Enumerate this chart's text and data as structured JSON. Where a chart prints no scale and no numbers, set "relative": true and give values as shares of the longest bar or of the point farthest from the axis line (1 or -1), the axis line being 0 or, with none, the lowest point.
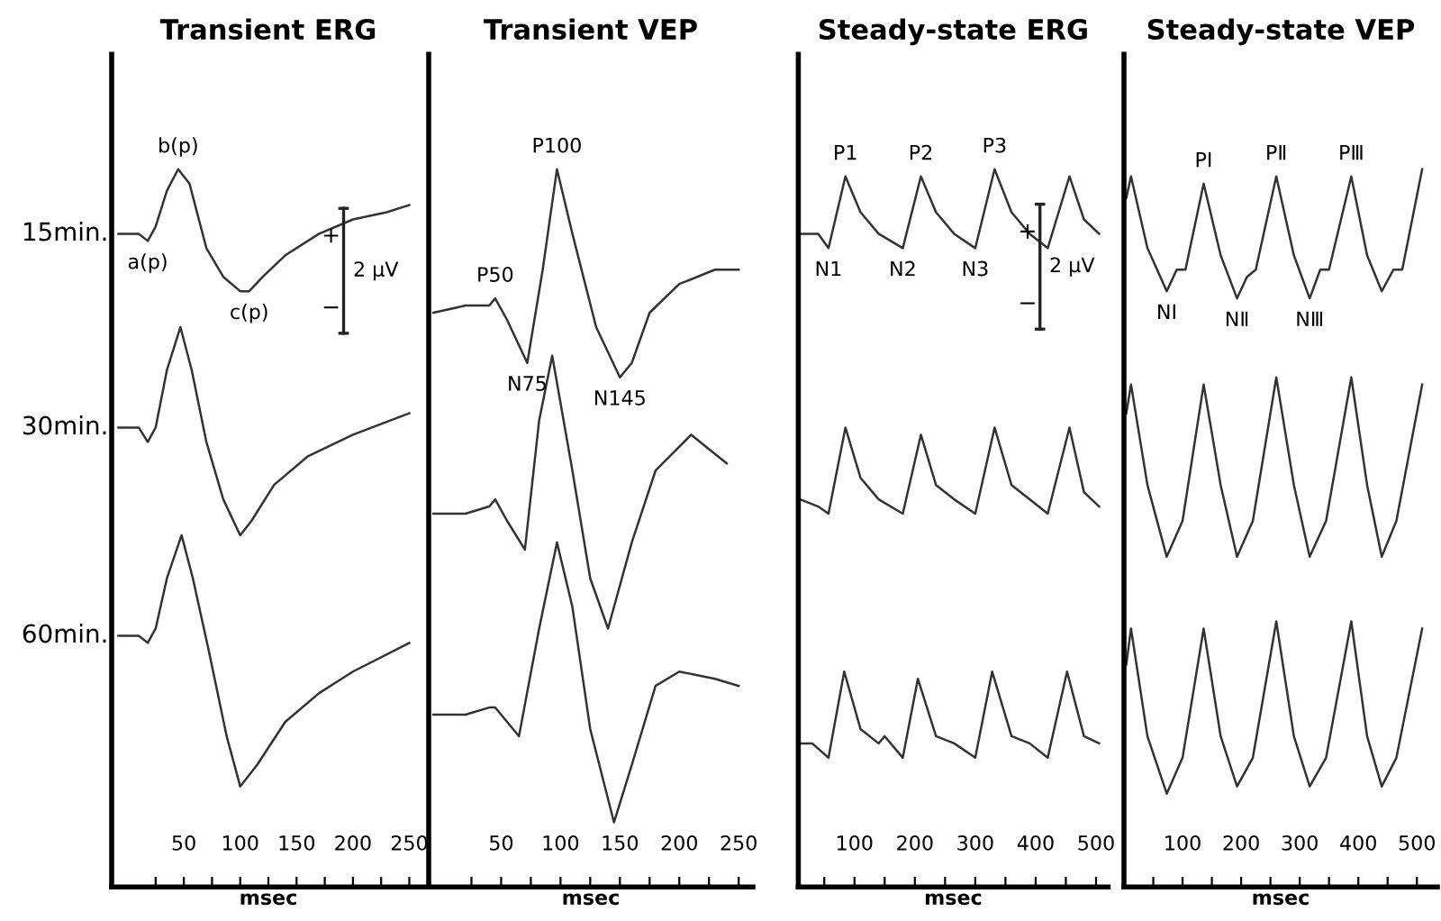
{
  "chart_data": [
    {
      "type": "line",
      "title": "Transient ERG",
      "xlabel": "msec",
      "relative": true,
      "legend": false,
      "grid": false,
      "color": "#333333",
      "xlim": [
        -14,
        264
      ],
      "xticks": [
        {
          "value": 25,
          "label": null
        },
        50,
        {
          "value": 75,
          "label": null
        },
        100,
        {
          "value": 125,
          "label": null
        },
        150,
        {
          "value": 175,
          "label": null
        },
        200,
        {
          "value": 225,
          "label": null
        },
        250
      ],
      "series": [
        {
          "x": [
            -8,
            10,
            18,
            25,
            35,
            45,
            55,
            70,
            85,
            100,
            108,
            120,
            140,
            170,
            200,
            230,
            250
          ],
          "values": [
            0.91,
            0.91,
            0.9,
            0.92,
            0.97,
            1.0,
            0.98,
            0.89,
            0.85,
            0.83,
            0.83,
            0.85,
            0.88,
            0.91,
            0.93,
            0.94,
            0.95
          ]
        },
        {
          "x": [
            -8,
            10,
            18,
            25,
            35,
            47,
            57,
            70,
            85,
            100,
            110,
            130,
            160,
            200,
            250
          ],
          "values": [
            0.64,
            0.64,
            0.62,
            0.64,
            0.72,
            0.78,
            0.72,
            0.62,
            0.54,
            0.49,
            0.51,
            0.56,
            0.6,
            0.63,
            0.66
          ]
        },
        {
          "x": [
            -8,
            10,
            18,
            25,
            35,
            48,
            58,
            72,
            88,
            100,
            115,
            140,
            170,
            200,
            250
          ],
          "values": [
            0.35,
            0.35,
            0.34,
            0.36,
            0.43,
            0.49,
            0.43,
            0.33,
            0.21,
            0.14,
            0.17,
            0.23,
            0.27,
            0.3,
            0.34
          ]
        }
      ],
      "annotations": [
        "15min.",
        "30min.",
        "60min.",
        "+",
        "−",
        "2 μV",
        {
          "text": "a(p)",
          "x": 18,
          "y": 0.9
        },
        {
          "text": "b(p)",
          "x": 45,
          "y": 1.0
        },
        {
          "text": "c(p)",
          "x": 108,
          "y": 0.83
        }
      ]
    },
    {
      "type": "line",
      "title": "Transient VEP",
      "xlabel": "msec",
      "relative": true,
      "legend": false,
      "grid": false,
      "color": "#333333",
      "xlim": [
        -11,
        262
      ],
      "xticks": [
        {
          "value": 25,
          "label": null
        },
        50,
        {
          "value": 75,
          "label": null
        },
        100,
        {
          "value": 125,
          "label": null
        },
        150,
        {
          "value": 175,
          "label": null
        },
        200,
        {
          "value": 225,
          "label": null
        },
        250
      ],
      "series": [
        {
          "x": [
            -7,
            20,
            40,
            45,
            55,
            72,
            85,
            97,
            110,
            130,
            150,
            160,
            175,
            200,
            230,
            250
          ],
          "values": [
            0.8,
            0.81,
            0.81,
            0.82,
            0.79,
            0.73,
            0.86,
            1.0,
            0.91,
            0.78,
            0.71,
            0.73,
            0.8,
            0.84,
            0.86,
            0.86
          ]
        },
        {
          "x": [
            -7,
            20,
            40,
            45,
            55,
            70,
            82,
            93,
            110,
            125,
            140,
            160,
            180,
            210,
            240
          ],
          "values": [
            0.52,
            0.52,
            0.53,
            0.54,
            0.51,
            0.47,
            0.65,
            0.74,
            0.58,
            0.43,
            0.36,
            0.48,
            0.58,
            0.63,
            0.59
          ]
        },
        {
          "x": [
            -7,
            20,
            40,
            45,
            55,
            65,
            82,
            97,
            110,
            125,
            145,
            160,
            180,
            200,
            230,
            250
          ],
          "values": [
            0.24,
            0.24,
            0.25,
            0.25,
            0.23,
            0.21,
            0.36,
            0.48,
            0.39,
            0.22,
            0.09,
            0.17,
            0.28,
            0.3,
            0.29,
            0.28
          ]
        }
      ],
      "annotations": [
        {
          "text": "P50",
          "x": 45,
          "y": 0.82
        },
        {
          "text": "N75",
          "x": 72,
          "y": 0.73
        },
        {
          "text": "P100",
          "x": 97,
          "y": 1.0
        },
        {
          "text": "N145",
          "x": 150,
          "y": 0.71
        }
      ]
    },
    {
      "type": "line",
      "title": "Steady-state ERG",
      "xlabel": "msec",
      "relative": true,
      "legend": false,
      "grid": false,
      "color": "#333333",
      "xlim": [
        7,
        520
      ],
      "xticks": [
        {
          "value": 50,
          "label": null
        },
        100,
        {
          "value": 150,
          "label": null
        },
        200,
        {
          "value": 250,
          "label": null
        },
        300,
        {
          "value": 350,
          "label": null
        },
        400,
        {
          "value": 450,
          "label": null
        },
        500
      ],
      "series": [
        {
          "x": [
            10,
            40,
            57,
            85,
            110,
            140,
            180,
            210,
            235,
            265,
            300,
            332,
            360,
            390,
            420,
            456,
            480,
            505
          ],
          "values": [
            0.91,
            0.91,
            0.89,
            0.99,
            0.94,
            0.91,
            0.89,
            0.99,
            0.94,
            0.91,
            0.89,
            1.0,
            0.94,
            0.91,
            0.89,
            0.99,
            0.93,
            0.91
          ]
        },
        {
          "x": [
            10,
            40,
            57,
            85,
            110,
            140,
            180,
            210,
            235,
            265,
            300,
            332,
            360,
            390,
            420,
            456,
            480,
            505
          ],
          "values": [
            0.54,
            0.53,
            0.52,
            0.64,
            0.57,
            0.54,
            0.52,
            0.63,
            0.56,
            0.54,
            0.52,
            0.64,
            0.56,
            0.54,
            0.52,
            0.64,
            0.55,
            0.53
          ]
        },
        {
          "x": [
            10,
            30,
            57,
            83,
            110,
            140,
            150,
            180,
            205,
            235,
            265,
            300,
            328,
            360,
            390,
            420,
            452,
            480,
            505
          ],
          "values": [
            0.2,
            0.2,
            0.18,
            0.3,
            0.22,
            0.2,
            0.21,
            0.18,
            0.29,
            0.21,
            0.2,
            0.18,
            0.3,
            0.21,
            0.2,
            0.18,
            0.3,
            0.21,
            0.2
          ]
        }
      ],
      "annotations": [
        "+",
        "−",
        "2 μV",
        {
          "text": "P1",
          "x": 85,
          "y": 0.99
        },
        {
          "text": "P2",
          "x": 210,
          "y": 0.99
        },
        {
          "text": "P3",
          "x": 332,
          "y": 1.0
        },
        {
          "text": "N1",
          "x": 57,
          "y": 0.89
        },
        {
          "text": "N2",
          "x": 180,
          "y": 0.89
        },
        {
          "text": "N3",
          "x": 300,
          "y": 0.89
        }
      ]
    },
    {
      "type": "line",
      "title": "Steady-state VEP",
      "xlabel": "msec",
      "relative": true,
      "legend": false,
      "grid": false,
      "color": "#333333",
      "xlim": [
        0,
        535
      ],
      "xticks": [
        {
          "value": 50,
          "label": null
        },
        100,
        {
          "value": 150,
          "label": null
        },
        200,
        {
          "value": 250,
          "label": null
        },
        300,
        {
          "value": 350,
          "label": null
        },
        400,
        {
          "value": 450,
          "label": null
        },
        500
      ],
      "series": [
        {
          "x": [
            4,
            12,
            40,
            73,
            90,
            105,
            136,
            165,
            193,
            210,
            225,
            260,
            290,
            317,
            335,
            350,
            388,
            415,
            440,
            460,
            475,
            509
          ],
          "values": [
            0.96,
            0.99,
            0.89,
            0.83,
            0.86,
            0.86,
            0.98,
            0.88,
            0.82,
            0.85,
            0.86,
            0.99,
            0.88,
            0.82,
            0.86,
            0.86,
            0.99,
            0.88,
            0.83,
            0.86,
            0.86,
            1.0
          ]
        },
        {
          "x": [
            4,
            12,
            40,
            73,
            100,
            136,
            165,
            193,
            220,
            260,
            290,
            317,
            345,
            388,
            415,
            440,
            465,
            509
          ],
          "values": [
            0.66,
            0.7,
            0.56,
            0.46,
            0.51,
            0.7,
            0.56,
            0.46,
            0.51,
            0.71,
            0.56,
            0.46,
            0.51,
            0.71,
            0.56,
            0.46,
            0.51,
            0.7
          ]
        },
        {
          "x": [
            4,
            12,
            40,
            73,
            100,
            136,
            165,
            193,
            220,
            260,
            290,
            317,
            345,
            388,
            415,
            440,
            465,
            509
          ],
          "values": [
            0.31,
            0.36,
            0.21,
            0.13,
            0.18,
            0.36,
            0.21,
            0.14,
            0.18,
            0.37,
            0.21,
            0.14,
            0.18,
            0.37,
            0.21,
            0.14,
            0.18,
            0.36
          ]
        }
      ],
      "annotations": [
        {
          "text": "PⅠ",
          "x": 136,
          "y": 0.98
        },
        {
          "text": "PⅡ",
          "x": 260,
          "y": 0.99
        },
        {
          "text": "PⅢ",
          "x": 388,
          "y": 0.99
        },
        {
          "text": "NⅠ",
          "x": 73,
          "y": 0.83
        },
        {
          "text": "NⅡ",
          "x": 193,
          "y": 0.82
        },
        {
          "text": "NⅢ",
          "x": 317,
          "y": 0.82
        }
      ]
    }
  ]
}
